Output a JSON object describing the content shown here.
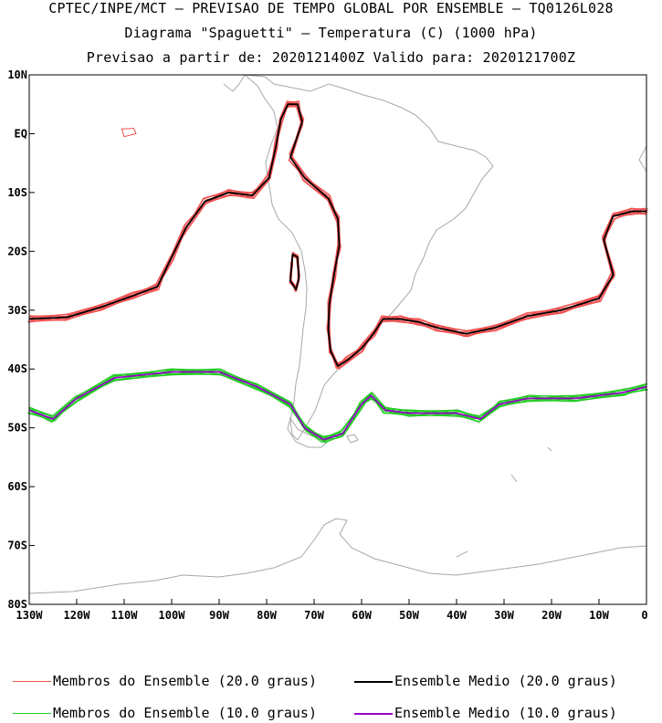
{
  "header": {
    "line1": "CPTEC/INPE/MCT – PREVISAO DE TEMPO GLOBAL POR ENSEMBLE – TQ0126L028",
    "line2": "Diagrama \"Spaguetti\" – Temperatura (C) (1000 hPa)",
    "line3": "Previsao a partir de: 2020121400Z  Valido para: 2020121700Z"
  },
  "map": {
    "lat_labels": [
      "10N",
      "EQ",
      "10S",
      "20S",
      "30S",
      "40S",
      "50S",
      "60S",
      "70S",
      "80S"
    ],
    "lon_labels": [
      "130W",
      "120W",
      "110W",
      "100W",
      "90W",
      "80W",
      "70W",
      "60W",
      "50W",
      "40W",
      "30W",
      "20W",
      "10W",
      "0"
    ],
    "lon_range": [
      -130,
      0
    ],
    "lat_range": [
      -80,
      10
    ]
  },
  "colors": {
    "member_20": "#f05050",
    "mean_20": "#000000",
    "member_10": "#22cc22",
    "mean_10": "#9900cc",
    "coast": "#a8a8a8"
  },
  "legend": {
    "member_20": "Membros do Ensemble (20.0 graus)",
    "mean_20": "Ensemble Medio (20.0 graus)",
    "member_10": "Membros do Ensemble (10.0 graus)",
    "mean_10": "Ensemble Medio (10.0 graus)"
  }
}
